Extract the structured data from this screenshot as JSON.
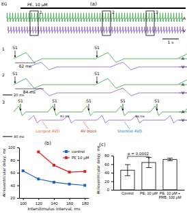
{
  "panel_a": {
    "label": "(a)",
    "channel": "EG",
    "drug": "PE, 10 μM",
    "time_scale": "1 s",
    "channels": [
      "A",
      "V"
    ],
    "insets": [
      {
        "number": "1",
        "stimuli": [
          "S1",
          "S1"
        ],
        "delay": "62 ms"
      },
      {
        "number": "2",
        "stimuli": [
          "S1",
          "S1"
        ],
        "delay": "84 ms",
        "time_scale": "20 ms"
      },
      {
        "number": "3",
        "stimuli": [
          "S1",
          "S1",
          "S1",
          "S1",
          "S1"
        ],
        "time_scale": "40 ms",
        "notes": [
          {
            "text": "Longest AVD",
            "color": "#e8641e"
          },
          {
            "text": "AV block",
            "color": "#c0392b"
          },
          {
            "text": "Shortest AVD",
            "color": "#1f7fd0"
          }
        ],
        "delays": [
          "91 ms",
          "46 ms"
        ]
      }
    ]
  },
  "chart_data": [
    {
      "type": "line",
      "title": "(b)",
      "x_label": "Interstimulus interval, ms",
      "y_label": "Atrioventricular delay, ms",
      "x": [
        100,
        120,
        140,
        160,
        180
      ],
      "xlim": [
        95,
        185
      ],
      "xticks": [
        100,
        120,
        140,
        160,
        180
      ],
      "ylim": [
        20,
        100
      ],
      "yticks": [
        20,
        40,
        60,
        80,
        100
      ],
      "grid": false,
      "legend": "upper right",
      "marker": "square",
      "series": [
        {
          "name": "control",
          "color": "#1f5fbf",
          "values": [
            63,
            50,
            45,
            42,
            40
          ]
        },
        {
          "name": "PE 10 μM",
          "color": "#e02020",
          "values": [
            null,
            93,
            72,
            61,
            62
          ]
        }
      ]
    },
    {
      "type": "bar",
      "title": "(c)",
      "y_label": "Atrioventricular delay, ms",
      "categories": [
        "Control",
        "PE, 10 μM",
        "PE, 10 μM +\nPRB, 100 μM"
      ],
      "values": [
        46,
        64,
        71
      ],
      "errors": [
        13,
        12,
        3
      ],
      "color": "#ffffff",
      "ylim": [
        0,
        80
      ],
      "yticks": [
        0,
        20,
        40,
        60,
        80
      ],
      "grid": false,
      "annotations": [
        "p = 0.0002"
      ]
    }
  ]
}
